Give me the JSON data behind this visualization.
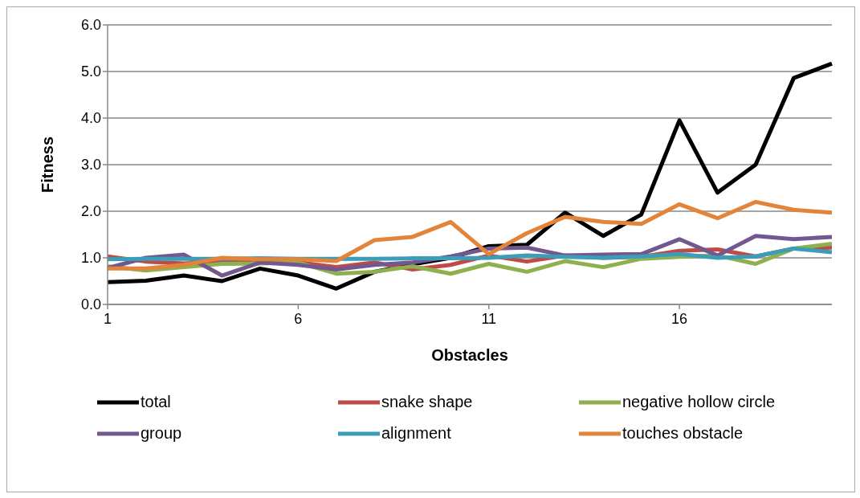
{
  "chart_data": {
    "type": "line",
    "xlabel": "Obstacles",
    "ylabel": "Fitness",
    "categories": [
      "1",
      null,
      null,
      null,
      null,
      "6",
      null,
      null,
      null,
      null,
      "11",
      null,
      null,
      null,
      null,
      "16",
      null,
      null,
      null,
      null
    ],
    "series": [
      {
        "name": "total",
        "color": "#000000",
        "values": [
          0.48,
          0.51,
          0.62,
          0.5,
          0.77,
          0.62,
          0.34,
          0.7,
          0.86,
          1.0,
          1.25,
          1.28,
          1.97,
          1.47,
          1.93,
          3.95,
          2.4,
          3.0,
          4.86,
          5.17
        ]
      },
      {
        "name": "snake shape",
        "color": "#be4b48",
        "values": [
          1.03,
          0.92,
          0.88,
          0.93,
          0.95,
          0.9,
          0.8,
          0.9,
          0.75,
          0.85,
          1.05,
          0.92,
          1.05,
          1.0,
          1.02,
          1.15,
          1.18,
          1.03,
          1.2,
          1.22
        ]
      },
      {
        "name": "negative hollow circle",
        "color": "#8eb04e",
        "values": [
          0.82,
          0.73,
          0.8,
          0.87,
          0.88,
          0.9,
          0.66,
          0.7,
          0.82,
          0.66,
          0.87,
          0.7,
          0.93,
          0.8,
          0.98,
          1.02,
          1.05,
          0.87,
          1.2,
          1.3
        ]
      },
      {
        "name": "group",
        "color": "#72588f",
        "values": [
          0.78,
          1.0,
          1.07,
          0.62,
          0.9,
          0.85,
          0.75,
          0.85,
          0.9,
          1.03,
          1.2,
          1.22,
          1.05,
          1.07,
          1.08,
          1.4,
          1.05,
          1.47,
          1.4,
          1.45
        ]
      },
      {
        "name": "alignment",
        "color": "#3b9db8",
        "values": [
          0.97,
          0.98,
          0.98,
          0.98,
          0.99,
          0.98,
          0.98,
          0.98,
          0.99,
          0.99,
          1.0,
          1.05,
          1.02,
          1.0,
          1.03,
          1.08,
          1.0,
          1.03,
          1.2,
          1.12
        ]
      },
      {
        "name": "touches obstacle",
        "color": "#e3843b",
        "values": [
          0.77,
          0.77,
          0.85,
          1.0,
          0.97,
          0.97,
          0.93,
          1.38,
          1.45,
          1.77,
          1.08,
          1.53,
          1.88,
          1.77,
          1.73,
          2.15,
          1.85,
          2.2,
          2.03,
          1.97
        ]
      }
    ],
    "ylim": [
      0,
      6
    ],
    "yticks": [
      {
        "value": 0,
        "label": "0.0"
      },
      {
        "value": 1,
        "label": "1.0"
      },
      {
        "value": 2,
        "label": "2.0"
      },
      {
        "value": 3,
        "label": "3.0"
      },
      {
        "value": 4,
        "label": "4.0"
      },
      {
        "value": 5,
        "label": "5.0"
      },
      {
        "value": 6,
        "label": "6.0"
      }
    ],
    "grid": "y",
    "legend": "bottom",
    "marker": "none",
    "line_style": "solid"
  }
}
